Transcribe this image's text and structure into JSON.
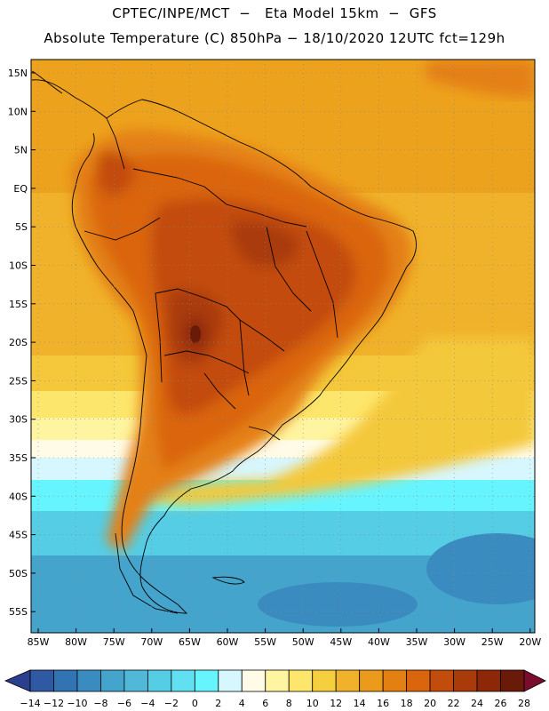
{
  "header": {
    "line1": "CPTEC/INPE/MCT  −   Eta Model 15km  −  GFS",
    "line2": "Absolute Temperature (C) 850hPa − 18/10/2020 12UTC fct=129h"
  },
  "map": {
    "region": "South America",
    "lat_labels": [
      "15N",
      "10N",
      "5N",
      "EQ",
      "5S",
      "10S",
      "15S",
      "20S",
      "25S",
      "30S",
      "35S",
      "40S",
      "45S",
      "50S",
      "55S"
    ],
    "lon_labels": [
      "85W",
      "80W",
      "75W",
      "70W",
      "65W",
      "60W",
      "55W",
      "50W",
      "45W",
      "40W",
      "35W",
      "30W",
      "25W",
      "20W"
    ]
  },
  "colorbar": {
    "labels": [
      "-14",
      "-12",
      "-10",
      "-8",
      "-6",
      "-4",
      "-2",
      "0",
      "2",
      "4",
      "6",
      "8",
      "10",
      "12",
      "14",
      "16",
      "18",
      "20",
      "22",
      "24",
      "26",
      "28"
    ],
    "colors": [
      "#2a3f8e",
      "#2f5aa3",
      "#3173b3",
      "#3a8cc0",
      "#45a4cc",
      "#52b8d8",
      "#55cde5",
      "#60e0f0",
      "#66f5ff",
      "#d7f7ff",
      "#fffbe6",
      "#fff4a0",
      "#fde66c",
      "#f6cf3e",
      "#f0b22a",
      "#eb9a1b",
      "#e48012",
      "#da650c",
      "#c24c0c",
      "#a93a0a",
      "#8c2808",
      "#6a1a08",
      "#7a0d2e"
    ]
  }
}
